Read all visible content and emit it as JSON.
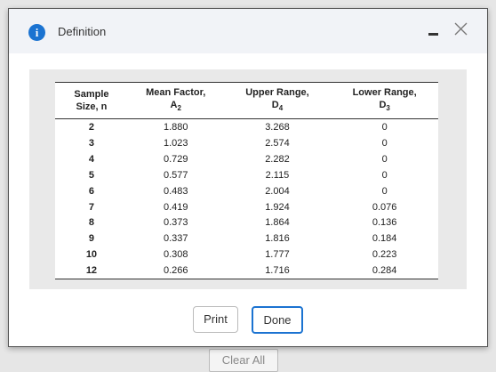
{
  "dialog": {
    "title": "Definition",
    "table": {
      "headers": [
        {
          "line1": "Sample",
          "line2": "Size, n"
        },
        {
          "line1": "Mean Factor,",
          "symbol": "A",
          "subscript": "2"
        },
        {
          "line1": "Upper Range,",
          "symbol": "D",
          "subscript": "4"
        },
        {
          "line1": "Lower Range,",
          "symbol": "D",
          "subscript": "3"
        }
      ],
      "rows": [
        [
          "2",
          "1.880",
          "3.268",
          "0"
        ],
        [
          "3",
          "1.023",
          "2.574",
          "0"
        ],
        [
          "4",
          "0.729",
          "2.282",
          "0"
        ],
        [
          "5",
          "0.577",
          "2.115",
          "0"
        ],
        [
          "6",
          "0.483",
          "2.004",
          "0"
        ],
        [
          "7",
          "0.419",
          "1.924",
          "0.076"
        ],
        [
          "8",
          "0.373",
          "1.864",
          "0.136"
        ],
        [
          "9",
          "0.337",
          "1.816",
          "0.184"
        ],
        [
          "10",
          "0.308",
          "1.777",
          "0.223"
        ],
        [
          "12",
          "0.266",
          "1.716",
          "0.284"
        ]
      ]
    },
    "buttons": {
      "print": "Print",
      "done": "Done"
    }
  },
  "page": {
    "clear_all": "Clear All"
  }
}
